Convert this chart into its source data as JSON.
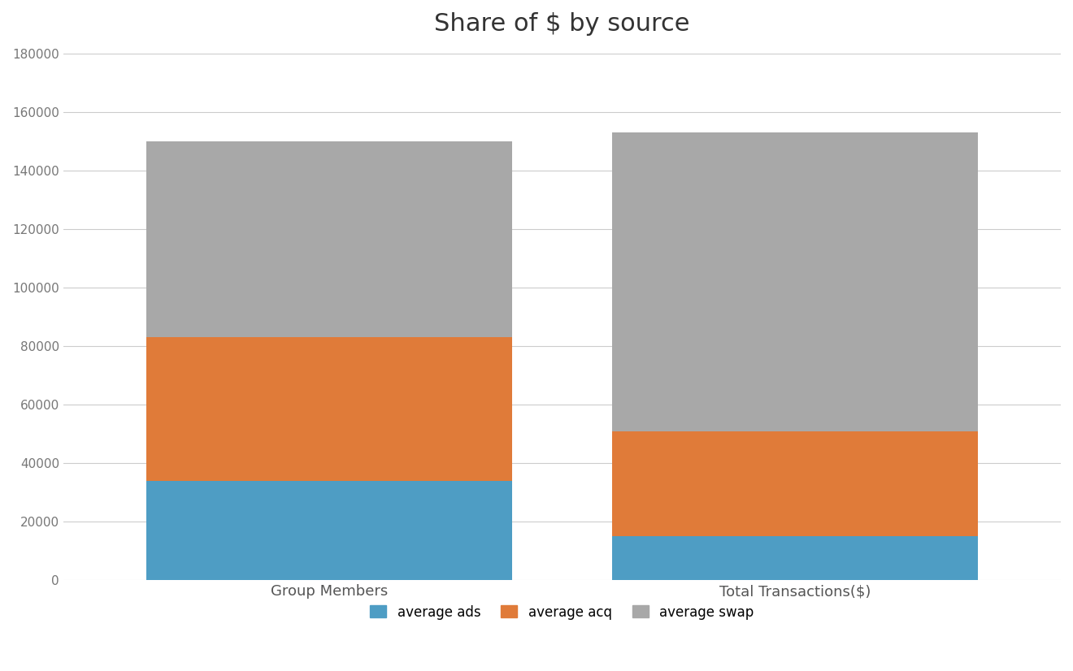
{
  "categories": [
    "Group Members",
    "Total Transactions($)"
  ],
  "ads": [
    34000,
    15000
  ],
  "acq": [
    49000,
    36000
  ],
  "swap": [
    67000,
    102000
  ],
  "color_ads": "#4E9DC4",
  "color_acq": "#E07B39",
  "color_swap": "#A8A8A8",
  "title": "Share of $ by source",
  "title_fontsize": 22,
  "ylim": [
    0,
    180000
  ],
  "yticks": [
    0,
    20000,
    40000,
    60000,
    80000,
    100000,
    120000,
    140000,
    160000,
    180000
  ],
  "legend_labels": [
    "average ads",
    "average acq",
    "average swap"
  ],
  "background_color": "#FFFFFF",
  "bar_width": 0.55,
  "x_positions": [
    0.3,
    1.0
  ]
}
